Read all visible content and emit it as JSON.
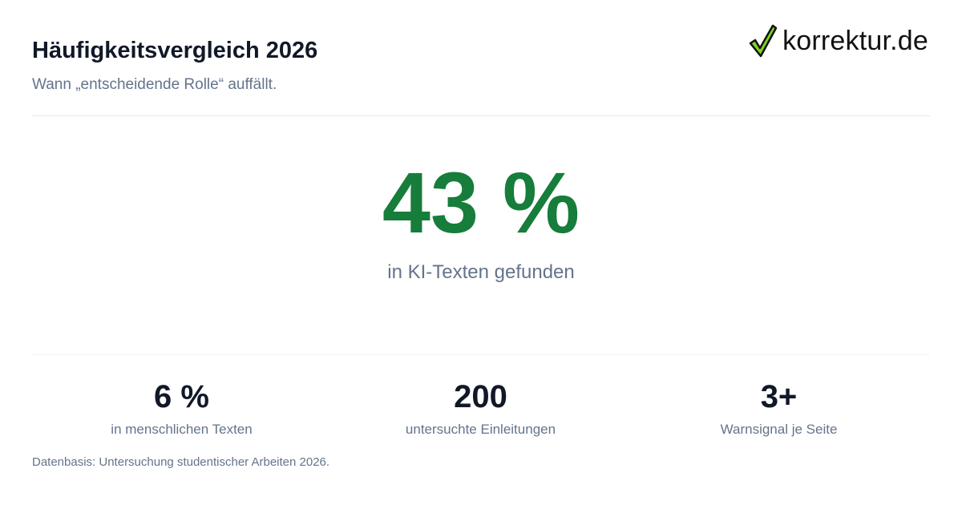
{
  "header": {
    "title": "Häufigkeitsvergleich 2026",
    "subtitle": "Wann „entscheidende Rolle“ auffällt.",
    "logo": "korrektur.de"
  },
  "hero": {
    "value": "43 %",
    "label": "in KI-Texten gefunden"
  },
  "stats": [
    {
      "value": "6 %",
      "label": "in menschlichen Texten"
    },
    {
      "value": "200",
      "label": "untersuchte Einleitungen"
    },
    {
      "value": "3+",
      "label": "Warnsignal je Seite"
    }
  ],
  "footnote": "Datenbasis: Untersuchung studentischer Arbeiten 2026."
}
